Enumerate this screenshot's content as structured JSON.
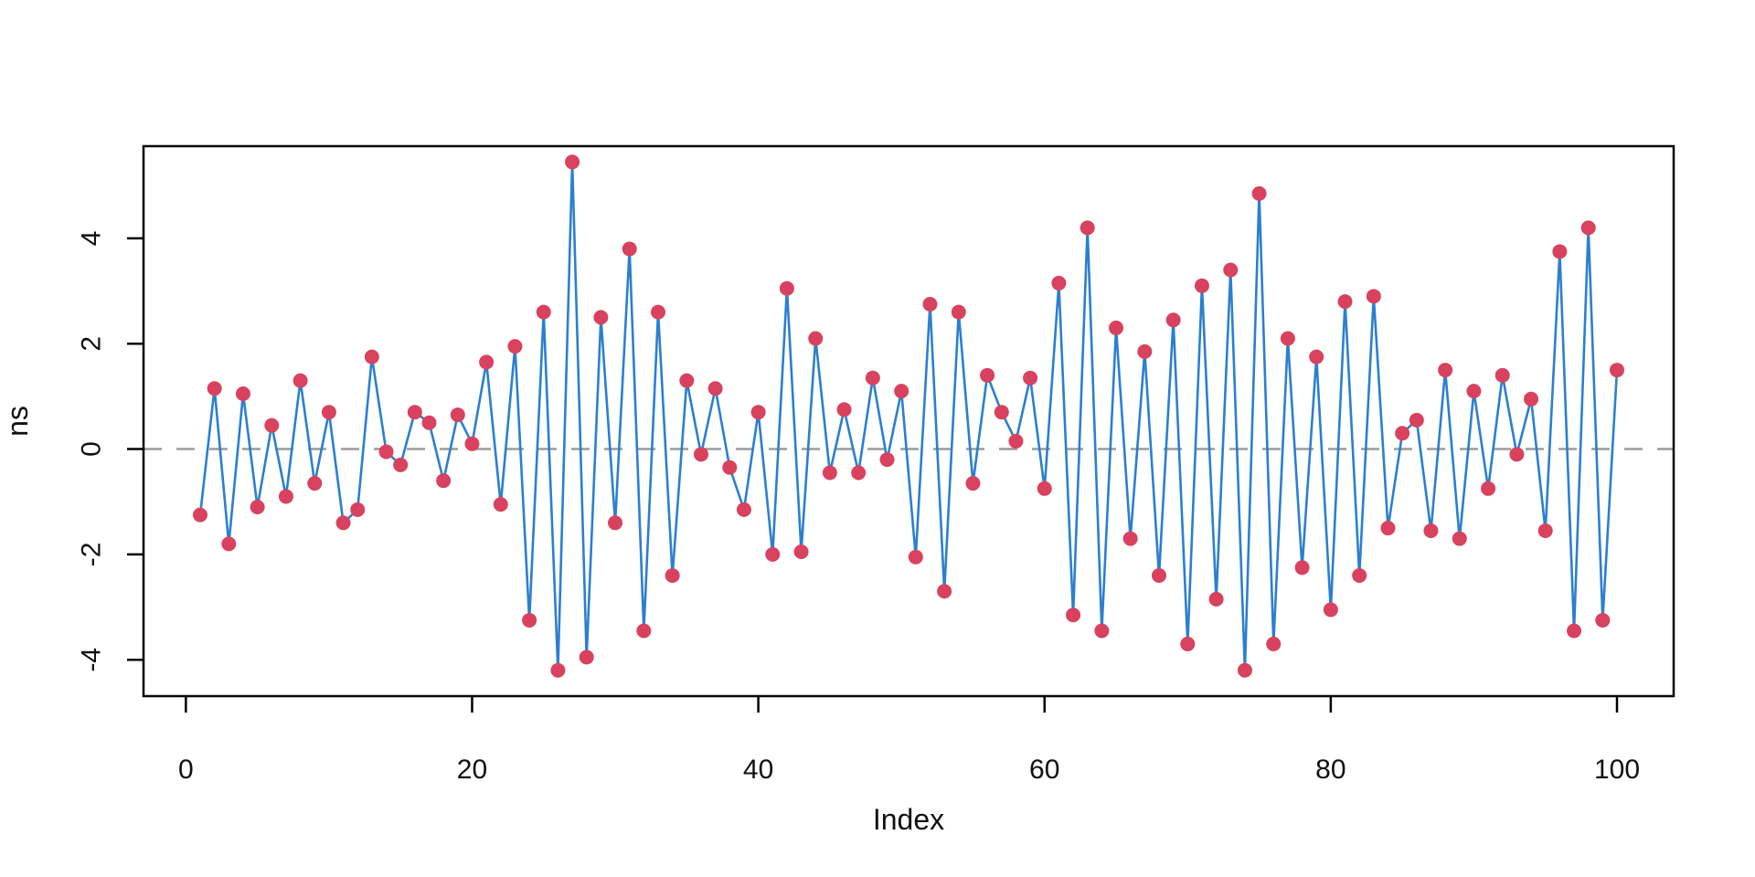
{
  "chart_data": {
    "type": "line",
    "title": "",
    "xlabel": "Index",
    "ylabel": "ns",
    "x_ticks": [
      0,
      20,
      40,
      60,
      80,
      100
    ],
    "y_ticks": [
      -4,
      -2,
      0,
      2,
      4
    ],
    "xlim": [
      -2.96,
      103.96
    ],
    "ylim": [
      -4.69,
      5.75
    ],
    "grid": "none",
    "zero_reference_line": 0,
    "legend": "none",
    "marker": "filled-circle",
    "x": [
      1,
      2,
      3,
      4,
      5,
      6,
      7,
      8,
      9,
      10,
      11,
      12,
      13,
      14,
      15,
      16,
      17,
      18,
      19,
      20,
      21,
      22,
      23,
      24,
      25,
      26,
      27,
      28,
      29,
      30,
      31,
      32,
      33,
      34,
      35,
      36,
      37,
      38,
      39,
      40,
      41,
      42,
      43,
      44,
      45,
      46,
      47,
      48,
      49,
      50,
      51,
      52,
      53,
      54,
      55,
      56,
      57,
      58,
      59,
      60,
      61,
      62,
      63,
      64,
      65,
      66,
      67,
      68,
      69,
      70,
      71,
      72,
      73,
      74,
      75,
      76,
      77,
      78,
      79,
      80,
      81,
      82,
      83,
      84,
      85,
      86,
      87,
      88,
      89,
      90,
      91,
      92,
      93,
      94,
      95,
      96,
      97,
      98,
      99,
      100
    ],
    "values": [
      -1.25,
      1.15,
      -1.8,
      1.05,
      -1.1,
      0.45,
      -0.9,
      1.3,
      -0.65,
      0.7,
      -1.4,
      -1.15,
      1.75,
      -0.05,
      -0.3,
      0.7,
      0.5,
      -0.6,
      0.65,
      0.1,
      1.65,
      -1.05,
      1.95,
      -3.25,
      2.6,
      -4.2,
      5.45,
      -3.95,
      2.5,
      -1.4,
      3.8,
      -3.45,
      2.6,
      -2.4,
      1.3,
      -0.1,
      1.15,
      -0.35,
      -1.15,
      0.7,
      -2.0,
      3.05,
      -1.95,
      2.1,
      -0.45,
      0.75,
      -0.45,
      1.35,
      -0.2,
      1.1,
      -2.05,
      2.75,
      -2.7,
      2.6,
      -0.65,
      1.4,
      0.7,
      0.15,
      1.35,
      -0.75,
      3.15,
      -3.15,
      4.2,
      -3.45,
      2.3,
      -1.7,
      1.85,
      -2.4,
      2.45,
      -3.7,
      3.1,
      -2.85,
      3.4,
      -4.2,
      4.85,
      -3.7,
      2.1,
      -2.25,
      1.75,
      -3.05,
      2.8,
      -2.4,
      2.9,
      -1.5,
      0.3,
      0.55,
      -1.55,
      1.5,
      -1.7,
      1.1,
      -0.75,
      1.4,
      -0.1,
      0.95,
      -1.55,
      3.75,
      -3.45,
      4.2,
      -3.25,
      1.5
    ],
    "colors": {
      "line": "#2b7fd0",
      "marker": "#d8425f",
      "zero_line": "#9b9b9b",
      "axis": "#000000",
      "background": "#ffffff"
    }
  }
}
